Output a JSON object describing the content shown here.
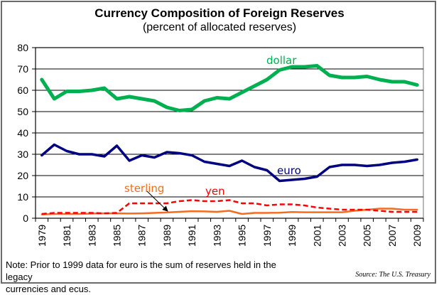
{
  "chart_data": {
    "type": "line",
    "title": "Currency Composition of Foreign Reserves",
    "subtitle": "(percent of allocated reserves)",
    "xlabel": "",
    "ylabel": "",
    "ylim": [
      0,
      80
    ],
    "yticks": [
      "0",
      "10",
      "20",
      "30",
      "40",
      "50",
      "60",
      "70",
      "80"
    ],
    "x": [
      1979,
      1980,
      1981,
      1982,
      1983,
      1984,
      1985,
      1986,
      1987,
      1988,
      1989,
      1990,
      1991,
      1992,
      1993,
      1994,
      1995,
      1996,
      1997,
      1998,
      1999,
      2000,
      2001,
      2002,
      2003,
      2004,
      2005,
      2006,
      2007,
      2008,
      2009
    ],
    "xtick_labels": [
      "1979",
      "1981",
      "1983",
      "1985",
      "1987",
      "1989",
      "1991",
      "1993",
      "1995",
      "1997",
      "1999",
      "2001",
      "2003",
      "2005",
      "2007",
      "2009"
    ],
    "grid": true,
    "series": [
      {
        "name": "dollar",
        "color": "#00b050",
        "style": "solid",
        "values": [
          65,
          56,
          59.5,
          59.5,
          60,
          61,
          56,
          57,
          56,
          55,
          52,
          50.5,
          51,
          55,
          56.5,
          56,
          59,
          62,
          65,
          69.5,
          71,
          71,
          71.5,
          67,
          66,
          66,
          66.5,
          65,
          64,
          64,
          62.5
        ]
      },
      {
        "name": "euro",
        "color": "#000080",
        "style": "solid",
        "values": [
          29.5,
          34.5,
          31.5,
          30,
          30,
          29,
          34,
          27,
          29.5,
          28.5,
          31,
          30.5,
          29.5,
          26.5,
          25.5,
          24.5,
          27,
          24,
          22.5,
          17.5,
          18,
          18.5,
          19.5,
          24,
          25,
          25,
          24.5,
          25,
          26,
          26.5,
          27.5
        ]
      },
      {
        "name": "sterling",
        "color": "#f26d1f",
        "style": "solid",
        "values": [
          1.8,
          2,
          2,
          2,
          2.2,
          2.3,
          2.3,
          2.2,
          2.3,
          2.5,
          2.7,
          3,
          3.3,
          3.2,
          3,
          3.5,
          2,
          2.5,
          2.5,
          2.6,
          2.9,
          2.8,
          2.8,
          2.8,
          2.8,
          3.5,
          4,
          4.5,
          4.5,
          4,
          4
        ]
      },
      {
        "name": "yen",
        "color": "#ff0000",
        "style": "dashed",
        "values": [
          2,
          2.5,
          2.5,
          2.5,
          2.5,
          2.3,
          2.5,
          7,
          7,
          7,
          7,
          8,
          8.5,
          8,
          8,
          8.5,
          7,
          7,
          6,
          6.5,
          6.5,
          6,
          5,
          4.5,
          4,
          4,
          4,
          3.5,
          3,
          3,
          3
        ]
      }
    ],
    "annotations": [
      {
        "text": "dollar",
        "series": "dollar"
      },
      {
        "text": "euro",
        "series": "euro"
      },
      {
        "text": "sterling",
        "series": "sterling",
        "arrow": true
      },
      {
        "text": "yen",
        "series": "yen"
      }
    ],
    "legend": "inline-labels"
  },
  "footer": {
    "note_line1": "Note:  Prior to 1999 data for euro is the sum of reserves held in the legacy",
    "note_line2": "currencies and  ecus.",
    "source": "Source:  The U.S. Treasury"
  }
}
